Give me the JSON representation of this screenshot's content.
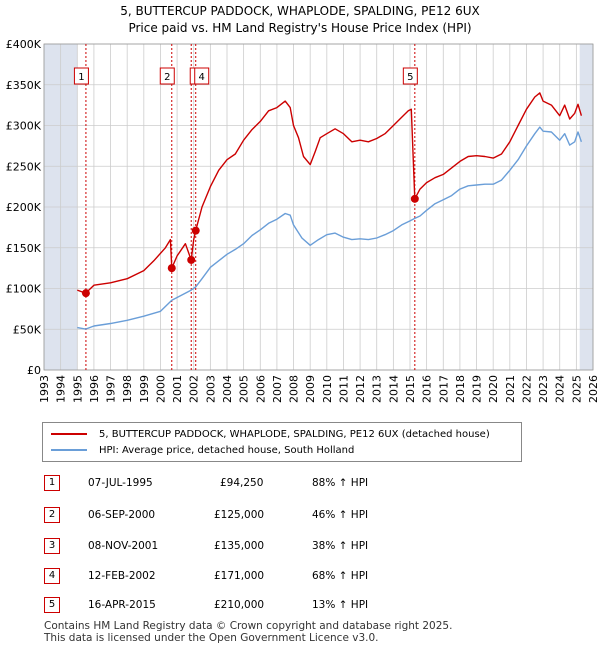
{
  "title_line1": "5, BUTTERCUP PADDOCK, WHAPLODE, SPALDING, PE12 6UX",
  "title_line2": "Price paid vs. HM Land Registry's House Price Index (HPI)",
  "colors": {
    "property": "#cc0000",
    "hpi": "#6a9ed8",
    "shade": "#dde3ee",
    "grid": "#cccccc"
  },
  "chart_data": {
    "type": "line",
    "xlim": [
      1993,
      2026
    ],
    "ylim": [
      0,
      400000
    ],
    "x_ticks": [
      "1993",
      "1994",
      "1995",
      "1996",
      "1997",
      "1998",
      "1999",
      "2000",
      "2001",
      "2002",
      "2003",
      "2004",
      "2005",
      "2006",
      "2007",
      "2008",
      "2009",
      "2010",
      "2011",
      "2012",
      "2013",
      "2014",
      "2015",
      "2016",
      "2017",
      "2018",
      "2019",
      "2020",
      "2021",
      "2022",
      "2023",
      "2024",
      "2025",
      "2026"
    ],
    "y_ticks": [
      {
        "value": 0,
        "label": "£0"
      },
      {
        "value": 50000,
        "label": "£50K"
      },
      {
        "value": 100000,
        "label": "£100K"
      },
      {
        "value": 150000,
        "label": "£150K"
      },
      {
        "value": 200000,
        "label": "£200K"
      },
      {
        "value": 250000,
        "label": "£250K"
      },
      {
        "value": 300000,
        "label": "£300K"
      },
      {
        "value": 350000,
        "label": "£350K"
      },
      {
        "value": 400000,
        "label": "£400K"
      }
    ],
    "shaded_before": 1995.0,
    "shaded_after": 2025.2,
    "series": [
      {
        "name": "5, BUTTERCUP PADDOCK, WHAPLODE, SPALDING, PE12 6UX (detached house)",
        "color": "#cc0000",
        "points": [
          [
            1995.0,
            98000
          ],
          [
            1995.5,
            94250
          ],
          [
            1996.0,
            104000
          ],
          [
            1997.0,
            107000
          ],
          [
            1998.0,
            112000
          ],
          [
            1999.0,
            122000
          ],
          [
            1999.6,
            134000
          ],
          [
            2000.3,
            150000
          ],
          [
            2000.6,
            160000
          ],
          [
            2000.68,
            125000
          ],
          [
            2001.0,
            140000
          ],
          [
            2001.5,
            155000
          ],
          [
            2001.85,
            135000
          ],
          [
            2002.0,
            160000
          ],
          [
            2002.12,
            171000
          ],
          [
            2002.5,
            200000
          ],
          [
            2003.0,
            225000
          ],
          [
            2003.5,
            245000
          ],
          [
            2004.0,
            258000
          ],
          [
            2004.5,
            265000
          ],
          [
            2005.0,
            282000
          ],
          [
            2005.5,
            295000
          ],
          [
            2006.0,
            305000
          ],
          [
            2006.5,
            318000
          ],
          [
            2007.0,
            322000
          ],
          [
            2007.5,
            330000
          ],
          [
            2007.8,
            322000
          ],
          [
            2008.0,
            300000
          ],
          [
            2008.3,
            285000
          ],
          [
            2008.6,
            262000
          ],
          [
            2009.0,
            252000
          ],
          [
            2009.3,
            268000
          ],
          [
            2009.6,
            285000
          ],
          [
            2010.0,
            290000
          ],
          [
            2010.5,
            296000
          ],
          [
            2011.0,
            290000
          ],
          [
            2011.5,
            280000
          ],
          [
            2012.0,
            282000
          ],
          [
            2012.5,
            280000
          ],
          [
            2013.0,
            284000
          ],
          [
            2013.5,
            290000
          ],
          [
            2014.0,
            300000
          ],
          [
            2014.5,
            310000
          ],
          [
            2014.9,
            318000
          ],
          [
            2015.08,
            320000
          ],
          [
            2015.29,
            210000
          ],
          [
            2015.6,
            222000
          ],
          [
            2016.0,
            230000
          ],
          [
            2016.5,
            236000
          ],
          [
            2017.0,
            240000
          ],
          [
            2017.5,
            248000
          ],
          [
            2018.0,
            256000
          ],
          [
            2018.5,
            262000
          ],
          [
            2019.0,
            263000
          ],
          [
            2019.5,
            262000
          ],
          [
            2020.0,
            260000
          ],
          [
            2020.5,
            265000
          ],
          [
            2021.0,
            280000
          ],
          [
            2021.5,
            300000
          ],
          [
            2022.0,
            320000
          ],
          [
            2022.5,
            335000
          ],
          [
            2022.8,
            340000
          ],
          [
            2023.0,
            330000
          ],
          [
            2023.5,
            325000
          ],
          [
            2024.0,
            312000
          ],
          [
            2024.3,
            325000
          ],
          [
            2024.6,
            308000
          ],
          [
            2024.9,
            315000
          ],
          [
            2025.1,
            326000
          ],
          [
            2025.3,
            312000
          ]
        ]
      },
      {
        "name": "HPI: Average price, detached house, South Holland",
        "color": "#6a9ed8",
        "points": [
          [
            1995.0,
            52000
          ],
          [
            1995.5,
            50200
          ],
          [
            1996.0,
            54000
          ],
          [
            1997.0,
            57000
          ],
          [
            1998.0,
            61000
          ],
          [
            1999.0,
            66000
          ],
          [
            2000.0,
            72000
          ],
          [
            2000.68,
            85500
          ],
          [
            2001.0,
            89000
          ],
          [
            2001.85,
            98000
          ],
          [
            2002.12,
            102000
          ],
          [
            2002.5,
            112000
          ],
          [
            2003.0,
            126000
          ],
          [
            2003.5,
            134000
          ],
          [
            2004.0,
            142000
          ],
          [
            2004.5,
            148000
          ],
          [
            2005.0,
            155000
          ],
          [
            2005.5,
            165000
          ],
          [
            2006.0,
            172000
          ],
          [
            2006.5,
            180000
          ],
          [
            2007.0,
            185000
          ],
          [
            2007.5,
            192000
          ],
          [
            2007.8,
            190000
          ],
          [
            2008.0,
            178000
          ],
          [
            2008.5,
            162000
          ],
          [
            2009.0,
            153000
          ],
          [
            2009.5,
            160000
          ],
          [
            2010.0,
            166000
          ],
          [
            2010.5,
            168000
          ],
          [
            2011.0,
            163000
          ],
          [
            2011.5,
            160000
          ],
          [
            2012.0,
            161000
          ],
          [
            2012.5,
            160000
          ],
          [
            2013.0,
            162000
          ],
          [
            2013.5,
            166000
          ],
          [
            2014.0,
            171000
          ],
          [
            2014.5,
            178000
          ],
          [
            2015.0,
            183000
          ],
          [
            2015.29,
            186000
          ],
          [
            2015.6,
            189000
          ],
          [
            2016.0,
            196000
          ],
          [
            2016.5,
            204000
          ],
          [
            2017.0,
            209000
          ],
          [
            2017.5,
            214000
          ],
          [
            2018.0,
            222000
          ],
          [
            2018.5,
            226000
          ],
          [
            2019.0,
            227000
          ],
          [
            2019.5,
            228000
          ],
          [
            2020.0,
            228000
          ],
          [
            2020.5,
            233000
          ],
          [
            2021.0,
            245000
          ],
          [
            2021.5,
            258000
          ],
          [
            2022.0,
            275000
          ],
          [
            2022.5,
            290000
          ],
          [
            2022.8,
            298000
          ],
          [
            2023.0,
            293000
          ],
          [
            2023.5,
            292000
          ],
          [
            2024.0,
            282000
          ],
          [
            2024.3,
            290000
          ],
          [
            2024.6,
            276000
          ],
          [
            2024.9,
            280000
          ],
          [
            2025.1,
            292000
          ],
          [
            2025.3,
            280000
          ]
        ]
      }
    ],
    "sales": [
      {
        "id": "1",
        "x": 1995.52,
        "y": 94250
      },
      {
        "id": "2",
        "x": 2000.68,
        "y": 125000
      },
      {
        "id": "3",
        "x": 2001.85,
        "y": 135000
      },
      {
        "id": "4",
        "x": 2002.12,
        "y": 171000
      },
      {
        "id": "5",
        "x": 2015.29,
        "y": 210000
      }
    ]
  },
  "legend": [
    {
      "label": "5, BUTTERCUP PADDOCK, WHAPLODE, SPALDING, PE12 6UX (detached house)",
      "color": "#cc0000"
    },
    {
      "label": "HPI: Average price, detached house, South Holland",
      "color": "#6a9ed8"
    }
  ],
  "transactions": [
    {
      "id": "1",
      "date": "07-JUL-1995",
      "price": "£94,250",
      "hpi": "88% ↑ HPI"
    },
    {
      "id": "2",
      "date": "06-SEP-2000",
      "price": "£125,000",
      "hpi": "46% ↑ HPI"
    },
    {
      "id": "3",
      "date": "08-NOV-2001",
      "price": "£135,000",
      "hpi": "38% ↑ HPI"
    },
    {
      "id": "4",
      "date": "12-FEB-2002",
      "price": "£171,000",
      "hpi": "68% ↑ HPI"
    },
    {
      "id": "5",
      "date": "16-APR-2015",
      "price": "£210,000",
      "hpi": "13% ↑ HPI"
    }
  ],
  "footer_line1": "Contains HM Land Registry data © Crown copyright and database right 2025.",
  "footer_line2": "This data is licensed under the Open Government Licence v3.0."
}
